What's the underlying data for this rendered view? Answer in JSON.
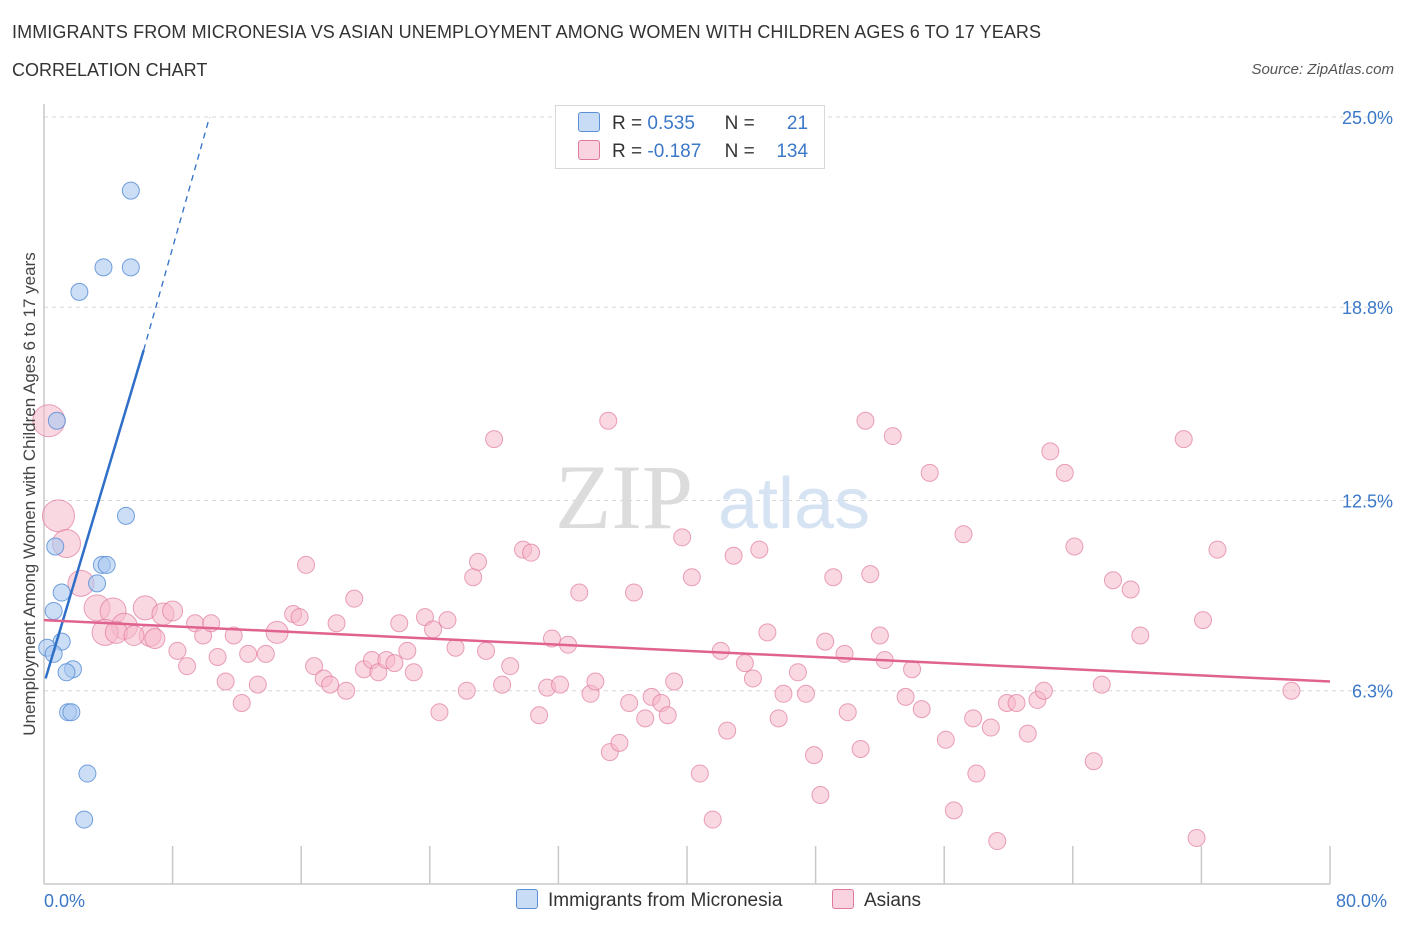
{
  "header": {
    "title": "IMMIGRANTS FROM MICRONESIA VS ASIAN UNEMPLOYMENT AMONG WOMEN WITH CHILDREN AGES 6 TO 17 YEARS",
    "subtitle": "CORRELATION CHART",
    "source": "Source: ZipAtlas.com"
  },
  "legend": {
    "rows": [
      {
        "r_label": "R =",
        "r_value": "0.535",
        "n_label": "N =",
        "n_value": "21",
        "color": "#a8c8f0"
      },
      {
        "r_label": "R =",
        "r_value": "-0.187",
        "n_label": "N =",
        "n_value": "134",
        "color": "#f5b8cb"
      }
    ]
  },
  "bottom_legend": {
    "series1": "Immigrants from Micronesia",
    "series2": "Asians"
  },
  "watermark": {
    "zip": "ZIP",
    "atlas": "atlas"
  },
  "colors": {
    "micronesia_fill": "#a8c8f0",
    "micronesia_stroke": "#5b8fd6",
    "micronesia_line": "#2f6fc8",
    "asians_fill": "#f5b8cb",
    "asians_stroke": "#e07a9c",
    "asians_line": "#e0638f",
    "axis_label": "#3c78c8",
    "grid": "#d7d7d7"
  },
  "chart_data": {
    "type": "scatter",
    "xlabel": "",
    "ylabel": "Unemployment Among Women with Children Ages 6 to 17 years",
    "xlim": [
      0,
      80
    ],
    "ylim": [
      0,
      25
    ],
    "x_tick_labels": [
      "0.0%",
      "80.0%"
    ],
    "y_tick_labels": [
      "25.0%",
      "18.8%",
      "12.5%",
      "6.3%"
    ],
    "y_tick_values": [
      25.0,
      18.8,
      12.5,
      6.3
    ],
    "grid": "horizontal dashed",
    "legend_position": "top-center",
    "series": [
      {
        "name": "Immigrants from Micronesia",
        "r": 0.535,
        "n": 21,
        "trend": {
          "x": [
            0.1,
            6.2
          ],
          "y": [
            6.7,
            17.4
          ],
          "extrapolated_to": [
            10.3,
            25.0
          ]
        },
        "points": [
          {
            "x": 5.4,
            "y": 22.6
          },
          {
            "x": 3.7,
            "y": 20.1
          },
          {
            "x": 5.4,
            "y": 20.1
          },
          {
            "x": 2.2,
            "y": 19.3
          },
          {
            "x": 0.8,
            "y": 15.1
          },
          {
            "x": 5.1,
            "y": 12.0
          },
          {
            "x": 0.7,
            "y": 11.0
          },
          {
            "x": 3.6,
            "y": 10.4
          },
          {
            "x": 3.9,
            "y": 10.4
          },
          {
            "x": 3.3,
            "y": 9.8
          },
          {
            "x": 1.1,
            "y": 9.5
          },
          {
            "x": 0.6,
            "y": 8.9
          },
          {
            "x": 1.1,
            "y": 7.9
          },
          {
            "x": 0.2,
            "y": 7.7
          },
          {
            "x": 0.6,
            "y": 7.5
          },
          {
            "x": 1.8,
            "y": 7.0
          },
          {
            "x": 1.4,
            "y": 6.9
          },
          {
            "x": 1.5,
            "y": 5.6
          },
          {
            "x": 1.7,
            "y": 5.6
          },
          {
            "x": 2.7,
            "y": 3.6
          },
          {
            "x": 2.5,
            "y": 2.1
          }
        ]
      },
      {
        "name": "Asians",
        "r": -0.187,
        "n": 134,
        "trend": {
          "x": [
            0,
            80
          ],
          "y": [
            8.6,
            6.6
          ]
        },
        "points": [
          {
            "x": 0.3,
            "y": 15.1,
            "s": 16
          },
          {
            "x": 0.9,
            "y": 12.0,
            "s": 16
          },
          {
            "x": 1.4,
            "y": 11.1,
            "s": 14
          },
          {
            "x": 2.3,
            "y": 9.8,
            "s": 13
          },
          {
            "x": 3.3,
            "y": 9.0,
            "s": 13
          },
          {
            "x": 4.3,
            "y": 8.9,
            "s": 13
          },
          {
            "x": 5.0,
            "y": 8.4,
            "s": 13
          },
          {
            "x": 3.8,
            "y": 8.2,
            "s": 13
          },
          {
            "x": 6.3,
            "y": 9.0,
            "s": 12
          },
          {
            "x": 6.6,
            "y": 8.1,
            "s": 11
          },
          {
            "x": 7.4,
            "y": 8.8,
            "s": 11
          },
          {
            "x": 8.0,
            "y": 8.9,
            "s": 10
          },
          {
            "x": 4.5,
            "y": 8.2,
            "s": 11
          },
          {
            "x": 5.6,
            "y": 8.1,
            "s": 10
          },
          {
            "x": 6.9,
            "y": 8.0,
            "s": 10
          },
          {
            "x": 8.3,
            "y": 7.6
          },
          {
            "x": 8.9,
            "y": 7.1
          },
          {
            "x": 9.4,
            "y": 8.5
          },
          {
            "x": 9.9,
            "y": 8.1
          },
          {
            "x": 10.4,
            "y": 8.5
          },
          {
            "x": 10.8,
            "y": 7.4
          },
          {
            "x": 11.3,
            "y": 6.6
          },
          {
            "x": 11.8,
            "y": 8.1
          },
          {
            "x": 12.3,
            "y": 5.9
          },
          {
            "x": 12.7,
            "y": 7.5
          },
          {
            "x": 13.3,
            "y": 6.5
          },
          {
            "x": 13.8,
            "y": 7.5
          },
          {
            "x": 14.5,
            "y": 8.2,
            "s": 11
          },
          {
            "x": 15.5,
            "y": 8.8
          },
          {
            "x": 15.9,
            "y": 8.7
          },
          {
            "x": 16.3,
            "y": 10.4
          },
          {
            "x": 16.8,
            "y": 7.1
          },
          {
            "x": 17.4,
            "y": 6.7
          },
          {
            "x": 17.8,
            "y": 6.5
          },
          {
            "x": 18.2,
            "y": 8.5
          },
          {
            "x": 18.8,
            "y": 6.3
          },
          {
            "x": 19.3,
            "y": 9.3
          },
          {
            "x": 19.9,
            "y": 7.0
          },
          {
            "x": 20.4,
            "y": 7.3
          },
          {
            "x": 20.8,
            "y": 6.9
          },
          {
            "x": 21.3,
            "y": 7.3
          },
          {
            "x": 21.8,
            "y": 7.2
          },
          {
            "x": 22.1,
            "y": 8.5
          },
          {
            "x": 22.6,
            "y": 7.6
          },
          {
            "x": 23.0,
            "y": 6.9
          },
          {
            "x": 23.7,
            "y": 8.7
          },
          {
            "x": 24.2,
            "y": 8.3
          },
          {
            "x": 24.6,
            "y": 5.6
          },
          {
            "x": 25.1,
            "y": 8.6
          },
          {
            "x": 25.6,
            "y": 7.7
          },
          {
            "x": 26.3,
            "y": 6.3
          },
          {
            "x": 26.7,
            "y": 10.0
          },
          {
            "x": 27.0,
            "y": 10.5
          },
          {
            "x": 27.5,
            "y": 7.6
          },
          {
            "x": 28.0,
            "y": 14.5
          },
          {
            "x": 28.5,
            "y": 6.5
          },
          {
            "x": 29.0,
            "y": 7.1
          },
          {
            "x": 29.8,
            "y": 10.9
          },
          {
            "x": 30.3,
            "y": 10.8
          },
          {
            "x": 30.8,
            "y": 5.5
          },
          {
            "x": 31.3,
            "y": 6.4
          },
          {
            "x": 31.6,
            "y": 8.0
          },
          {
            "x": 32.1,
            "y": 6.5
          },
          {
            "x": 32.6,
            "y": 7.8
          },
          {
            "x": 33.3,
            "y": 9.5
          },
          {
            "x": 34.0,
            "y": 6.2
          },
          {
            "x": 34.3,
            "y": 6.6
          },
          {
            "x": 35.1,
            "y": 15.1
          },
          {
            "x": 35.2,
            "y": 4.3
          },
          {
            "x": 35.8,
            "y": 4.6
          },
          {
            "x": 36.4,
            "y": 5.9
          },
          {
            "x": 36.7,
            "y": 9.5
          },
          {
            "x": 37.4,
            "y": 5.4
          },
          {
            "x": 37.8,
            "y": 6.1
          },
          {
            "x": 38.4,
            "y": 5.9
          },
          {
            "x": 38.8,
            "y": 5.5
          },
          {
            "x": 39.2,
            "y": 6.6
          },
          {
            "x": 39.7,
            "y": 11.3
          },
          {
            "x": 40.3,
            "y": 10.0
          },
          {
            "x": 40.8,
            "y": 3.6
          },
          {
            "x": 41.6,
            "y": 2.1
          },
          {
            "x": 42.1,
            "y": 7.6
          },
          {
            "x": 42.5,
            "y": 5.0
          },
          {
            "x": 42.9,
            "y": 10.7
          },
          {
            "x": 43.6,
            "y": 7.2
          },
          {
            "x": 44.1,
            "y": 6.7
          },
          {
            "x": 44.5,
            "y": 10.9
          },
          {
            "x": 45.0,
            "y": 8.2
          },
          {
            "x": 45.7,
            "y": 5.4
          },
          {
            "x": 46.0,
            "y": 6.2
          },
          {
            "x": 46.9,
            "y": 6.9
          },
          {
            "x": 47.4,
            "y": 6.2
          },
          {
            "x": 47.9,
            "y": 4.2
          },
          {
            "x": 48.3,
            "y": 2.9
          },
          {
            "x": 48.6,
            "y": 7.9
          },
          {
            "x": 49.1,
            "y": 10.0
          },
          {
            "x": 49.8,
            "y": 7.5
          },
          {
            "x": 50.0,
            "y": 5.6
          },
          {
            "x": 50.8,
            "y": 4.4
          },
          {
            "x": 51.1,
            "y": 15.1
          },
          {
            "x": 51.4,
            "y": 10.1
          },
          {
            "x": 52.0,
            "y": 8.1
          },
          {
            "x": 52.3,
            "y": 7.3
          },
          {
            "x": 52.8,
            "y": 14.6
          },
          {
            "x": 53.6,
            "y": 6.1
          },
          {
            "x": 54.0,
            "y": 7.0
          },
          {
            "x": 54.6,
            "y": 5.7
          },
          {
            "x": 55.1,
            "y": 13.4
          },
          {
            "x": 56.1,
            "y": 4.7
          },
          {
            "x": 56.6,
            "y": 2.4
          },
          {
            "x": 57.2,
            "y": 11.4
          },
          {
            "x": 57.8,
            "y": 5.4
          },
          {
            "x": 58.0,
            "y": 3.6
          },
          {
            "x": 58.9,
            "y": 5.1
          },
          {
            "x": 59.3,
            "y": 1.4
          },
          {
            "x": 59.9,
            "y": 5.9
          },
          {
            "x": 60.5,
            "y": 5.9
          },
          {
            "x": 61.2,
            "y": 4.9
          },
          {
            "x": 61.8,
            "y": 6.0
          },
          {
            "x": 62.2,
            "y": 6.3
          },
          {
            "x": 62.6,
            "y": 14.1
          },
          {
            "x": 63.5,
            "y": 13.4
          },
          {
            "x": 64.1,
            "y": 11.0
          },
          {
            "x": 65.3,
            "y": 4.0
          },
          {
            "x": 65.8,
            "y": 6.5
          },
          {
            "x": 66.5,
            "y": 9.9
          },
          {
            "x": 67.6,
            "y": 9.6
          },
          {
            "x": 68.2,
            "y": 8.1
          },
          {
            "x": 70.9,
            "y": 14.5
          },
          {
            "x": 71.7,
            "y": 1.5
          },
          {
            "x": 72.1,
            "y": 8.6
          },
          {
            "x": 73.0,
            "y": 10.9
          },
          {
            "x": 77.6,
            "y": 6.3
          }
        ]
      }
    ]
  }
}
